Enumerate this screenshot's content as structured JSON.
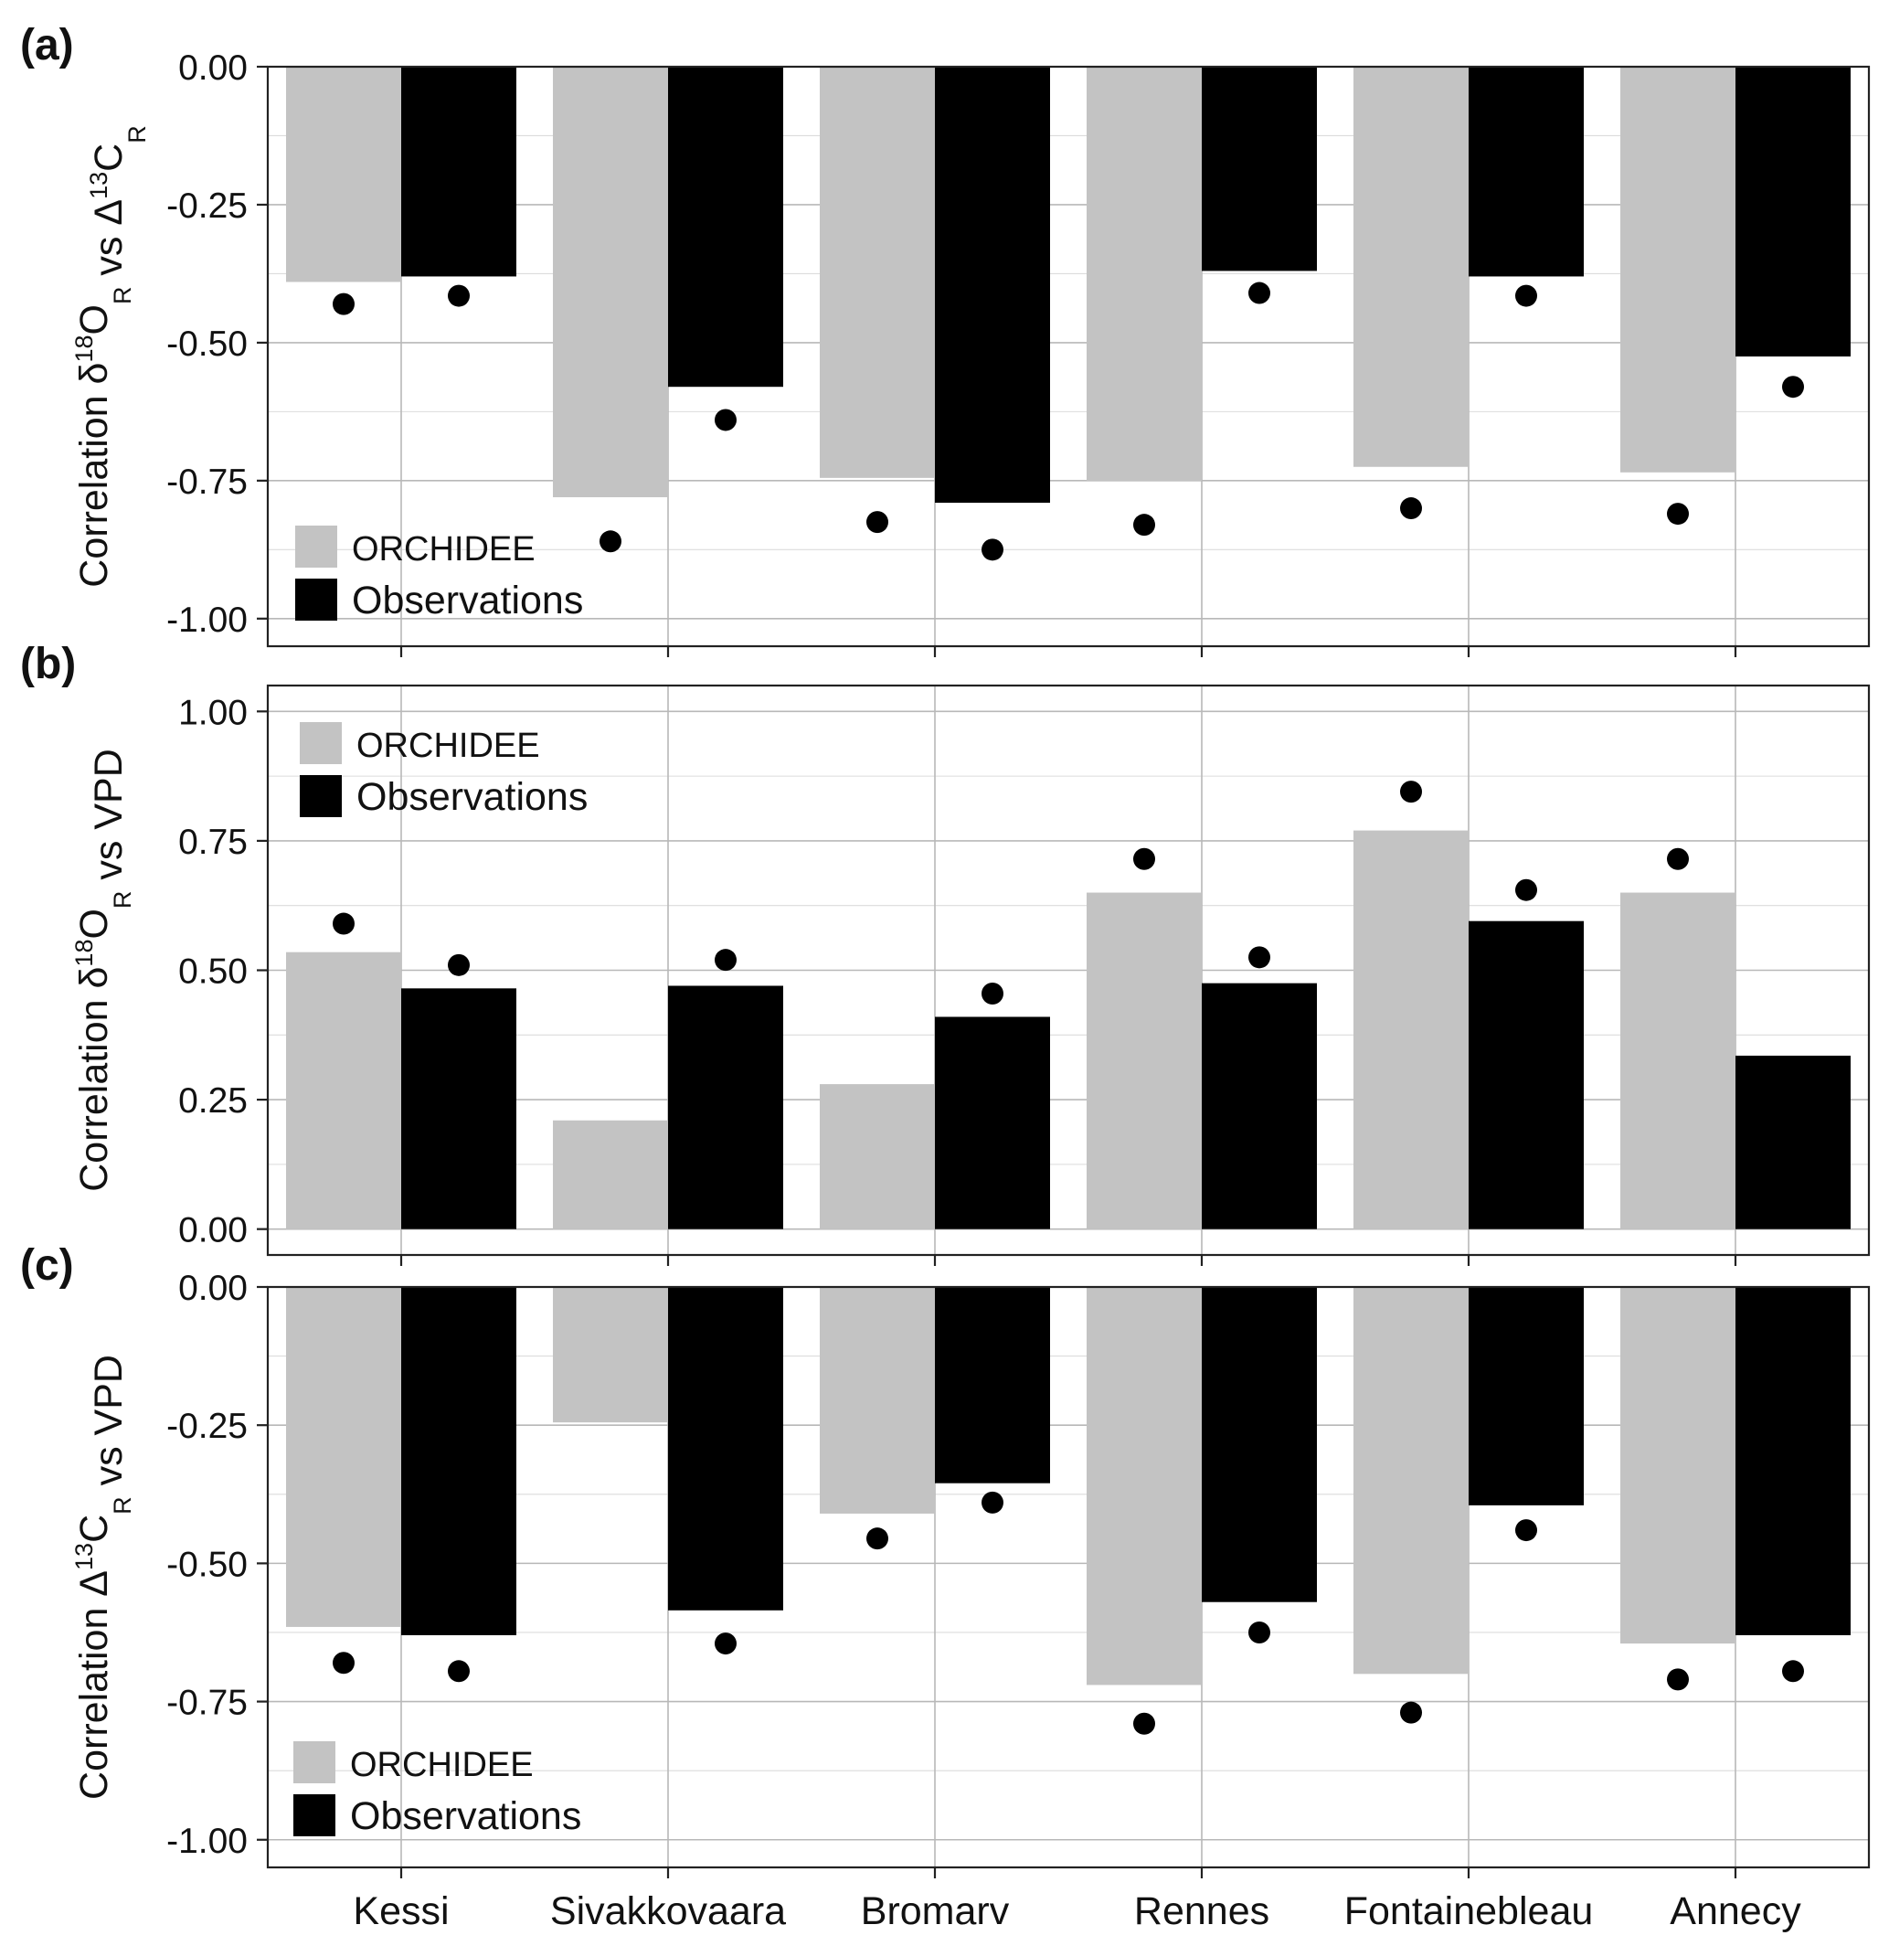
{
  "chart_data": [
    {
      "type": "bar",
      "panel_label": "(a)",
      "ylabel_parts": [
        "Correlation δ",
        "18",
        "O",
        "R",
        " vs Δ",
        "13",
        "C",
        "R"
      ],
      "ylim": [
        -1.05,
        0.0
      ],
      "yticks": [
        "0.00",
        "-0.25",
        "-0.50",
        "-0.75",
        "-1.00"
      ],
      "ytick_values": [
        0.0,
        -0.25,
        -0.5,
        -0.75,
        -1.0
      ],
      "grid": true,
      "legend_position": "bottom-left",
      "categories": [
        "Kessi",
        "Sivakkovaara",
        "Bromarv",
        "Rennes",
        "Fontainebleau",
        "Annecy"
      ],
      "series": [
        {
          "name": "ORCHIDEE",
          "color": "#c3c3c3",
          "values": [
            -0.39,
            -0.78,
            -0.745,
            -0.75,
            -0.725,
            -0.735
          ],
          "points": [
            -0.43,
            -0.86,
            -0.825,
            -0.83,
            -0.8,
            -0.81
          ]
        },
        {
          "name": "Observations",
          "color": "#000000",
          "values": [
            -0.38,
            -0.58,
            -0.79,
            -0.37,
            -0.38,
            -0.525
          ],
          "points": [
            -0.415,
            -0.64,
            -0.875,
            -0.41,
            -0.415,
            -0.58
          ]
        }
      ]
    },
    {
      "type": "bar",
      "panel_label": "(b)",
      "ylabel_parts": [
        "Correlation δ",
        "18",
        "O",
        "R",
        " vs VPD"
      ],
      "ylim": [
        -0.05,
        1.05
      ],
      "yticks": [
        "1.00",
        "0.75",
        "0.50",
        "0.25",
        "0.00"
      ],
      "ytick_values": [
        1.0,
        0.75,
        0.5,
        0.25,
        0.0
      ],
      "grid": true,
      "legend_position": "top-left",
      "categories": [
        "Kessi",
        "Sivakkovaara",
        "Bromarv",
        "Rennes",
        "Fontainebleau",
        "Annecy"
      ],
      "series": [
        {
          "name": "ORCHIDEE",
          "color": "#c3c3c3",
          "values": [
            0.535,
            0.21,
            0.28,
            0.65,
            0.77,
            0.65
          ],
          "points": [
            0.59,
            null,
            null,
            0.715,
            0.845,
            0.715
          ]
        },
        {
          "name": "Observations",
          "color": "#000000",
          "values": [
            0.465,
            0.47,
            0.41,
            0.475,
            0.595,
            0.335
          ],
          "points": [
            0.51,
            0.52,
            0.455,
            0.525,
            0.655,
            null
          ]
        }
      ]
    },
    {
      "type": "bar",
      "panel_label": "(c)",
      "ylabel_parts": [
        "Correlation Δ",
        "13",
        "C",
        "R",
        " vs VPD"
      ],
      "ylim": [
        -1.05,
        0.0
      ],
      "yticks": [
        "0.00",
        "-0.25",
        "-0.50",
        "-0.75",
        "-1.00"
      ],
      "ytick_values": [
        0.0,
        -0.25,
        -0.5,
        -0.75,
        -1.0
      ],
      "grid": true,
      "legend_position": "bottom-left",
      "categories": [
        "Kessi",
        "Sivakkovaara",
        "Bromarv",
        "Rennes",
        "Fontainebleau",
        "Annecy"
      ],
      "series": [
        {
          "name": "ORCHIDEE",
          "color": "#c3c3c3",
          "values": [
            -0.615,
            -0.245,
            -0.41,
            -0.72,
            -0.7,
            -0.645
          ],
          "points": [
            -0.68,
            null,
            -0.455,
            -0.79,
            -0.77,
            -0.71
          ]
        },
        {
          "name": "Observations",
          "color": "#000000",
          "values": [
            -0.63,
            -0.585,
            -0.355,
            -0.57,
            -0.395,
            -0.63
          ],
          "points": [
            -0.695,
            -0.645,
            -0.39,
            -0.625,
            -0.44,
            -0.695
          ]
        }
      ]
    }
  ]
}
